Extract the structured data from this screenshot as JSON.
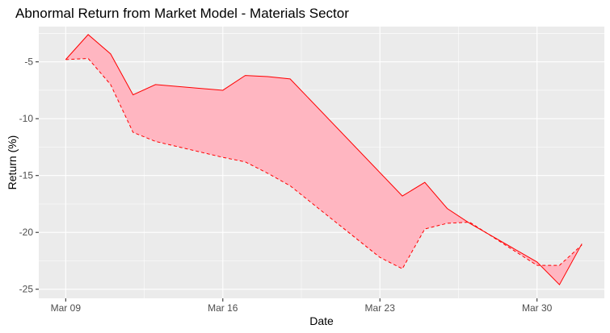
{
  "chart_data": {
    "type": "area",
    "title": "Abnormal Return from Market Model - Materials Sector",
    "xlabel": "Date",
    "ylabel": "Return (%)",
    "x_tick_labels": [
      {
        "label": "Mar 09",
        "day": 0
      },
      {
        "label": "Mar 16",
        "day": 7
      },
      {
        "label": "Mar 23",
        "day": 14
      },
      {
        "label": "Mar 30",
        "day": 21
      }
    ],
    "y_ticks": [
      -5,
      -10,
      -15,
      -20,
      -25
    ],
    "xlim": [
      -1.2,
      24
    ],
    "ylim": [
      -25.8,
      -1.9
    ],
    "grid": true,
    "fill_color": "#FFB6C1",
    "line_color": "#FF0000",
    "series": [
      {
        "line_style": "solid",
        "points": [
          {
            "x": "Mar 09",
            "y": -4.8
          },
          {
            "x": "Mar 10",
            "y": -2.6
          },
          {
            "x": "Mar 11",
            "y": -4.3
          },
          {
            "x": "Mar 12",
            "y": -7.9
          },
          {
            "x": "Mar 13",
            "y": -7.0
          },
          {
            "x": "Mar 16",
            "y": -7.5
          },
          {
            "x": "Mar 17",
            "y": -6.2
          },
          {
            "x": "Mar 18",
            "y": -6.3
          },
          {
            "x": "Mar 19",
            "y": -6.5
          },
          {
            "x": "Mar 24",
            "y": -16.8
          },
          {
            "x": "Mar 25",
            "y": -15.6
          },
          {
            "x": "Mar 26",
            "y": -17.9
          },
          {
            "x": "Mar 27",
            "y": -19.2
          },
          {
            "x": "Mar 30",
            "y": -22.6
          },
          {
            "x": "Mar 31",
            "y": -24.6
          },
          {
            "x": "Apr 01",
            "y": -21.0
          }
        ]
      },
      {
        "line_style": "dashed",
        "points": [
          {
            "x": "Mar 09",
            "y": -4.8
          },
          {
            "x": "Mar 10",
            "y": -4.7
          },
          {
            "x": "Mar 11",
            "y": -7.0
          },
          {
            "x": "Mar 12",
            "y": -11.2
          },
          {
            "x": "Mar 13",
            "y": -12.0
          },
          {
            "x": "Mar 16",
            "y": -13.4
          },
          {
            "x": "Mar 17",
            "y": -13.8
          },
          {
            "x": "Mar 18",
            "y": -14.8
          },
          {
            "x": "Mar 19",
            "y": -15.9
          },
          {
            "x": "Mar 23",
            "y": -22.2
          },
          {
            "x": "Mar 24",
            "y": -23.2
          },
          {
            "x": "Mar 25",
            "y": -19.7
          },
          {
            "x": "Mar 26",
            "y": -19.2
          },
          {
            "x": "Mar 27",
            "y": -19.1
          },
          {
            "x": "Mar 30",
            "y": -22.9
          },
          {
            "x": "Mar 31",
            "y": -22.9
          },
          {
            "x": "Apr 01",
            "y": -21.1
          }
        ]
      }
    ]
  }
}
